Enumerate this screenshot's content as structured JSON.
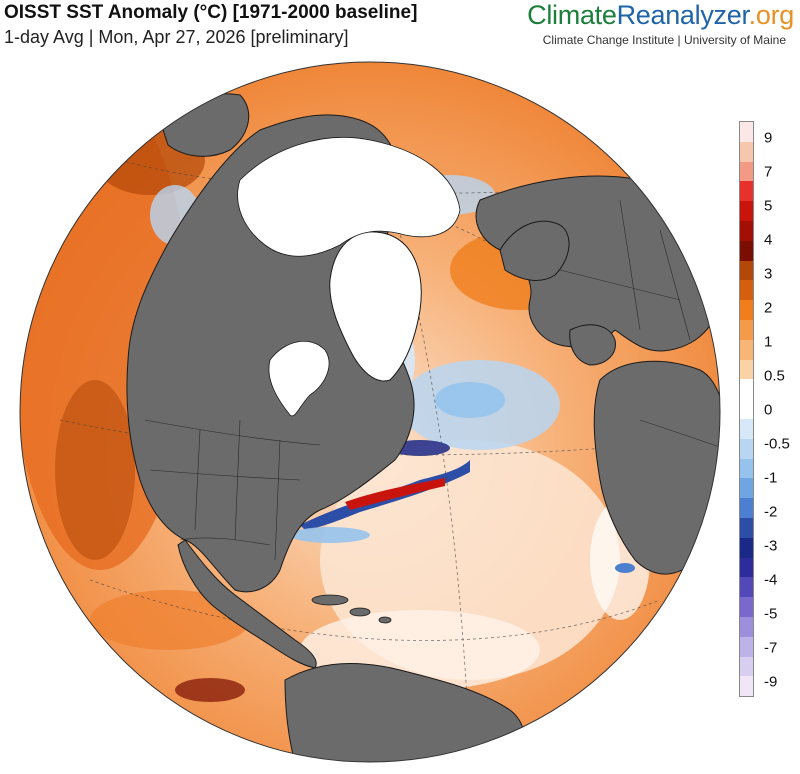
{
  "header": {
    "title": "OISST SST Anomaly (°C) [1971-2000 baseline]",
    "subtitle": "1-day Avg | Mon, Apr 27, 2026 [preliminary]"
  },
  "brand": {
    "part1": "Climate",
    "part2": "Reanalyzer",
    "part3": ".org",
    "sub": "Climate Change Institute | University of Maine"
  },
  "map": {
    "projection": "orthographic",
    "land_color": "#6b6b6b",
    "ice_color": "#ffffff",
    "ocean_base_color": "#f08a3c"
  },
  "legend": {
    "colors": [
      "#fbe6e8",
      "#f6c6ad",
      "#f39a85",
      "#e8302d",
      "#c9140d",
      "#a30e05",
      "#7a0e02",
      "#b34809",
      "#d4600f",
      "#f07e1d",
      "#f49a49",
      "#f7b676",
      "#fad2a6",
      "#ffffff",
      "#ffffff",
      "#d7e8f8",
      "#b8d6f2",
      "#96c3ed",
      "#6fa6e2",
      "#4d7fd0",
      "#2c4ea7",
      "#1a2888",
      "#2e2c9c",
      "#5348b8",
      "#7a68cc",
      "#9d8fdc",
      "#bdb3e8",
      "#d8cff0",
      "#f0e6f7"
    ],
    "ticks": [
      "9",
      "7",
      "5",
      "4",
      "3",
      "2",
      "1",
      "0.5",
      "0",
      "-0.5",
      "-1",
      "-2",
      "-3",
      "-4",
      "-5",
      "-7",
      "-9"
    ]
  }
}
